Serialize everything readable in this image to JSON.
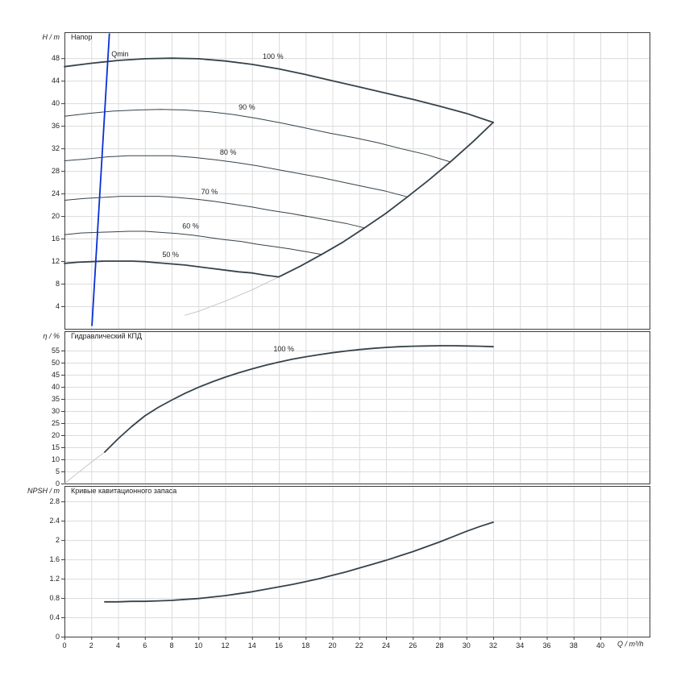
{
  "colors": {
    "curve": "#35424b",
    "faint": "#c2c2c2",
    "qmin": "#0a2fd4",
    "grid": "#dcdcdc",
    "axis": "#3c3c3c",
    "text": "#1e1e1e"
  },
  "xaxis": {
    "label": "Q / m³/h",
    "min": 0,
    "max": 43.7,
    "tick_values": [
      0,
      2,
      4,
      6,
      8,
      10,
      12,
      14,
      16,
      18,
      20,
      22,
      24,
      26,
      28,
      30,
      32,
      34,
      36,
      38,
      40
    ],
    "tick_labels": [
      "0",
      "2",
      "4",
      "6",
      "8",
      "10",
      "12",
      "14",
      "16",
      "18",
      "20",
      "22",
      "24",
      "26",
      "28",
      "30",
      "32",
      "34",
      "36",
      "38",
      "40"
    ],
    "grid_extra": [
      42
    ]
  },
  "chart_data": [
    {
      "type": "line",
      "title": "Напор",
      "ylabel": "H / m",
      "ylim": [
        0,
        52.6
      ],
      "grid": true,
      "ytick_values": [
        4,
        8,
        12,
        16,
        20,
        24,
        28,
        32,
        36,
        40,
        44,
        48
      ],
      "ytick_labels": [
        "4",
        "8",
        "12",
        "16",
        "20",
        "24",
        "28",
        "32",
        "36",
        "40",
        "44",
        "48"
      ],
      "series": [
        {
          "name": "speed-90",
          "label": "90 %",
          "label_pos": [
            13.0,
            38.9
          ],
          "weight": "normal",
          "points": [
            [
              0,
              37.7
            ],
            [
              1.8,
              38.2
            ],
            [
              3.6,
              38.6
            ],
            [
              5.4,
              38.8
            ],
            [
              7.2,
              38.9
            ],
            [
              9.0,
              38.8
            ],
            [
              10.8,
              38.5
            ],
            [
              12.6,
              38.0
            ],
            [
              14.4,
              37.3
            ],
            [
              16.2,
              36.5
            ],
            [
              18.0,
              35.6
            ],
            [
              19.8,
              34.7
            ],
            [
              21.6,
              33.9
            ],
            [
              23.4,
              33.0
            ],
            [
              25.2,
              31.9
            ],
            [
              27.0,
              30.9
            ],
            [
              28.8,
              29.6
            ]
          ]
        },
        {
          "name": "speed-80",
          "label": "80 %",
          "label_pos": [
            11.6,
            30.9
          ],
          "weight": "normal",
          "points": [
            [
              0,
              29.8
            ],
            [
              1.6,
              30.1
            ],
            [
              3.2,
              30.5
            ],
            [
              4.8,
              30.7
            ],
            [
              6.4,
              30.7
            ],
            [
              8.0,
              30.7
            ],
            [
              9.6,
              30.4
            ],
            [
              11.2,
              30.0
            ],
            [
              12.8,
              29.5
            ],
            [
              14.4,
              28.9
            ],
            [
              16.0,
              28.2
            ],
            [
              17.6,
              27.5
            ],
            [
              19.2,
              26.8
            ],
            [
              20.8,
              26.0
            ],
            [
              22.4,
              25.2
            ],
            [
              24.0,
              24.4
            ],
            [
              25.6,
              23.4
            ]
          ]
        },
        {
          "name": "speed-70",
          "label": "70 %",
          "label_pos": [
            10.2,
            23.9
          ],
          "weight": "normal",
          "points": [
            [
              0,
              22.8
            ],
            [
              1.4,
              23.1
            ],
            [
              2.8,
              23.3
            ],
            [
              4.2,
              23.5
            ],
            [
              5.6,
              23.5
            ],
            [
              7.0,
              23.5
            ],
            [
              8.4,
              23.3
            ],
            [
              9.8,
              23.0
            ],
            [
              11.2,
              22.6
            ],
            [
              12.6,
              22.1
            ],
            [
              14.0,
              21.6
            ],
            [
              15.4,
              21.0
            ],
            [
              16.8,
              20.5
            ],
            [
              18.2,
              19.9
            ],
            [
              19.6,
              19.3
            ],
            [
              21.0,
              18.7
            ],
            [
              22.4,
              17.9
            ]
          ]
        },
        {
          "name": "speed-60",
          "label": "60 %",
          "label_pos": [
            8.8,
            17.8
          ],
          "weight": "normal",
          "points": [
            [
              0,
              16.7
            ],
            [
              1.2,
              17.0
            ],
            [
              2.4,
              17.1
            ],
            [
              3.6,
              17.2
            ],
            [
              4.8,
              17.3
            ],
            [
              6.0,
              17.3
            ],
            [
              7.2,
              17.1
            ],
            [
              8.4,
              16.9
            ],
            [
              9.6,
              16.6
            ],
            [
              10.8,
              16.2
            ],
            [
              12.0,
              15.8
            ],
            [
              13.2,
              15.5
            ],
            [
              14.4,
              15.0
            ],
            [
              15.6,
              14.6
            ],
            [
              16.8,
              14.2
            ],
            [
              18.0,
              13.7
            ],
            [
              19.2,
              13.2
            ]
          ]
        },
        {
          "name": "envelope-tail",
          "weight": "faint",
          "points": [
            [
              16,
              9.2
            ],
            [
              14,
              6.9
            ],
            [
              12,
              4.9
            ],
            [
              10,
              3.1
            ],
            [
              9,
              2.4
            ]
          ]
        },
        {
          "name": "speed-100",
          "label": "100 %",
          "label_pos": [
            14.8,
            47.9
          ],
          "weight": "bold",
          "points": [
            [
              0,
              46.5
            ],
            [
              2,
              47.1
            ],
            [
              4,
              47.6
            ],
            [
              6,
              47.9
            ],
            [
              8,
              48.0
            ],
            [
              10,
              47.9
            ],
            [
              12,
              47.5
            ],
            [
              14,
              46.9
            ],
            [
              16,
              46.1
            ],
            [
              18,
              45.1
            ],
            [
              20,
              44.0
            ],
            [
              22,
              42.9
            ],
            [
              24,
              41.8
            ],
            [
              26,
              40.7
            ],
            [
              28,
              39.5
            ],
            [
              30,
              38.2
            ],
            [
              32,
              36.6
            ]
          ]
        },
        {
          "name": "speed-50",
          "label": "50 %",
          "label_pos": [
            7.3,
            12.7
          ],
          "weight": "bold",
          "points": [
            [
              0,
              11.6
            ],
            [
              1,
              11.8
            ],
            [
              2,
              11.9
            ],
            [
              3,
              12.0
            ],
            [
              4,
              12.0
            ],
            [
              5,
              12.0
            ],
            [
              6,
              11.9
            ],
            [
              7,
              11.7
            ],
            [
              8,
              11.5
            ],
            [
              9,
              11.3
            ],
            [
              10,
              11.0
            ],
            [
              11,
              10.7
            ],
            [
              12,
              10.4
            ],
            [
              13,
              10.1
            ],
            [
              14,
              9.9
            ],
            [
              15,
              9.5
            ],
            [
              16,
              9.2
            ]
          ]
        },
        {
          "name": "envelope-right",
          "weight": "bold",
          "points": [
            [
              32,
              36.6
            ],
            [
              30.5,
              33.2
            ],
            [
              28.8,
              29.6
            ],
            [
              27.2,
              26.4
            ],
            [
              25.6,
              23.4
            ],
            [
              24,
              20.5
            ],
            [
              22.4,
              17.9
            ],
            [
              20.8,
              15.4
            ],
            [
              19.2,
              13.2
            ],
            [
              17.6,
              11.1
            ],
            [
              16,
              9.2
            ]
          ]
        },
        {
          "name": "qmin-line",
          "label": "Qmin",
          "label_pos": [
            3.5,
            48.3
          ],
          "weight": "bold",
          "color": "#0a2fd4",
          "label_color": "#0a2fd4",
          "points": [
            [
              2.05,
              0.6
            ],
            [
              3.35,
              52.3
            ]
          ]
        }
      ]
    },
    {
      "type": "line",
      "title": "Гидравлический КПД",
      "ylabel": "η / %",
      "ylim": [
        0,
        63
      ],
      "grid": true,
      "ytick_values": [
        0,
        5,
        10,
        15,
        20,
        25,
        30,
        35,
        40,
        45,
        50,
        55
      ],
      "ytick_labels": [
        "0",
        "5",
        "10",
        "15",
        "20",
        "25",
        "30",
        "35",
        "40",
        "45",
        "50",
        "55"
      ],
      "series": [
        {
          "name": "efficiency-tail",
          "weight": "faint",
          "points": [
            [
              0,
              0
            ],
            [
              1,
              4.4
            ],
            [
              2,
              8.8
            ],
            [
              3,
              13
            ]
          ]
        },
        {
          "name": "efficiency-100",
          "label": "100 %",
          "label_pos": [
            15.6,
            54.6
          ],
          "weight": "bold",
          "points": [
            [
              3,
              13
            ],
            [
              4,
              18.5
            ],
            [
              5,
              23.5
            ],
            [
              6,
              28
            ],
            [
              7,
              31.5
            ],
            [
              8,
              34.5
            ],
            [
              9,
              37.3
            ],
            [
              10,
              39.8
            ],
            [
              11,
              42
            ],
            [
              12,
              44
            ],
            [
              13,
              45.8
            ],
            [
              14,
              47.4
            ],
            [
              15,
              48.9
            ],
            [
              16,
              50.2
            ],
            [
              17,
              51.4
            ],
            [
              18,
              52.4
            ],
            [
              19,
              53.3
            ],
            [
              20,
              54.1
            ],
            [
              21,
              54.8
            ],
            [
              22,
              55.4
            ],
            [
              23,
              55.9
            ],
            [
              24,
              56.3
            ],
            [
              25,
              56.6
            ],
            [
              26,
              56.8
            ],
            [
              27,
              56.9
            ],
            [
              28,
              57.0
            ],
            [
              29,
              57.0
            ],
            [
              30,
              56.9
            ],
            [
              31,
              56.8
            ],
            [
              32,
              56.6
            ]
          ]
        }
      ]
    },
    {
      "type": "line",
      "title": "Кривые кавитационного запаса",
      "ylabel": "NPSH / m",
      "ylim": [
        0,
        3.12
      ],
      "grid": true,
      "ytick_values": [
        0,
        0.4,
        0.8,
        1.2,
        1.6,
        2,
        2.4,
        2.8
      ],
      "ytick_labels": [
        "0",
        "0.4",
        "0.8",
        "1.2",
        "1.6",
        "2",
        "2.4",
        "2.8"
      ],
      "series": [
        {
          "name": "npsh",
          "weight": "bold",
          "points": [
            [
              3,
              0.72
            ],
            [
              4,
              0.72
            ],
            [
              5,
              0.73
            ],
            [
              6,
              0.73
            ],
            [
              7,
              0.74
            ],
            [
              8,
              0.75
            ],
            [
              9,
              0.77
            ],
            [
              10,
              0.79
            ],
            [
              11,
              0.82
            ],
            [
              12,
              0.85
            ],
            [
              13,
              0.89
            ],
            [
              14,
              0.93
            ],
            [
              15,
              0.98
            ],
            [
              16,
              1.03
            ],
            [
              17,
              1.08
            ],
            [
              18,
              1.14
            ],
            [
              19,
              1.2
            ],
            [
              20,
              1.27
            ],
            [
              21,
              1.34
            ],
            [
              22,
              1.42
            ],
            [
              23,
              1.5
            ],
            [
              24,
              1.58
            ],
            [
              25,
              1.67
            ],
            [
              26,
              1.76
            ],
            [
              27,
              1.86
            ],
            [
              28,
              1.96
            ],
            [
              29,
              2.07
            ],
            [
              30,
              2.18
            ],
            [
              31,
              2.28
            ],
            [
              32,
              2.37
            ]
          ]
        }
      ]
    }
  ]
}
